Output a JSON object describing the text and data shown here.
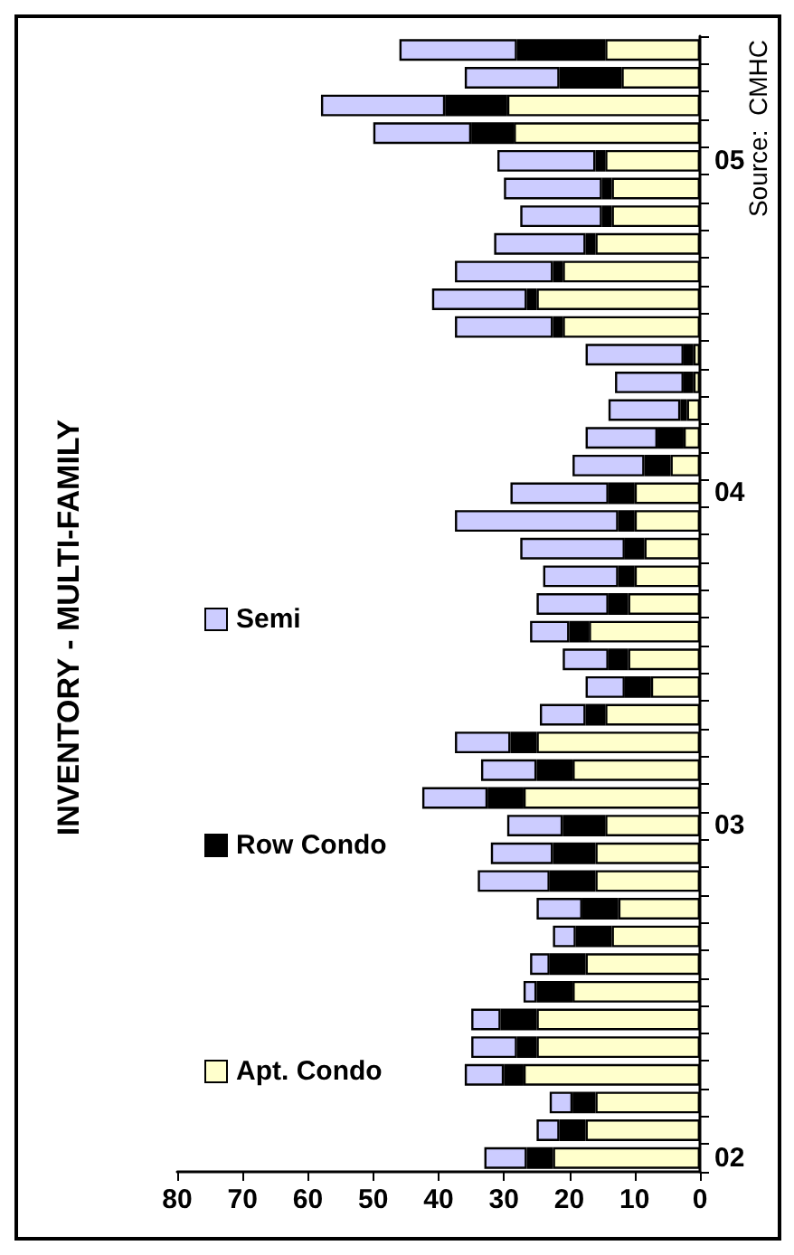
{
  "chart_data": {
    "type": "bar",
    "orientation": "horizontal",
    "title": "INVENTORY - MULTI-FAMILY",
    "stacked": true,
    "legend": "left",
    "grid": false,
    "categories": [
      null,
      null,
      null,
      null,
      "05",
      null,
      null,
      null,
      null,
      null,
      null,
      null,
      null,
      null,
      null,
      null,
      "04",
      null,
      null,
      null,
      null,
      null,
      null,
      null,
      null,
      null,
      null,
      null,
      "03",
      null,
      null,
      null,
      null,
      null,
      null,
      null,
      null,
      null,
      null,
      null,
      "02"
    ],
    "series": [
      {
        "name": "Apt. Condo",
        "color": "#ffffcc",
        "values": [
          14.5,
          12,
          29.5,
          28.5,
          14.5,
          13.5,
          13.5,
          16,
          21,
          25,
          21,
          1,
          1,
          2,
          2.5,
          4.5,
          10,
          10,
          8.5,
          10,
          11,
          17,
          11,
          7.5,
          14.5,
          25,
          19.5,
          27,
          14.5,
          16,
          16,
          12.5,
          13.5,
          17.5,
          19.5,
          25,
          25,
          27,
          16,
          17.5,
          22.5
        ]
      },
      {
        "name": "Row Condo",
        "color": "#000000",
        "values": [
          13.5,
          9.5,
          9.5,
          6.5,
          1.5,
          1.5,
          1.5,
          1.5,
          1.5,
          1.5,
          1.5,
          1.5,
          1.5,
          1,
          4,
          4,
          4,
          2.5,
          3,
          2.5,
          3,
          3,
          3,
          4,
          3,
          4,
          5.5,
          5.5,
          6.5,
          6.5,
          7,
          5.5,
          5.5,
          5.5,
          5.5,
          5.5,
          3,
          3,
          3.5,
          4,
          4
        ]
      },
      {
        "name": "Semi",
        "color": "#ccccff",
        "values": [
          18,
          14.5,
          19,
          15,
          15,
          15,
          12.5,
          14,
          15,
          14.5,
          15,
          15,
          10.5,
          11,
          11,
          11,
          15,
          25,
          16,
          11.5,
          11,
          6,
          7,
          6,
          7,
          8.5,
          8.5,
          10,
          8.5,
          9.5,
          11,
          7,
          3.5,
          3,
          2,
          4.5,
          7,
          6,
          3.5,
          3.5,
          6.5
        ]
      }
    ],
    "xlim": [
      80,
      0
    ],
    "xticks": [
      80,
      70,
      60,
      50,
      40,
      30,
      20,
      10,
      0
    ],
    "annotations": [
      "Source:  CMHC"
    ]
  }
}
